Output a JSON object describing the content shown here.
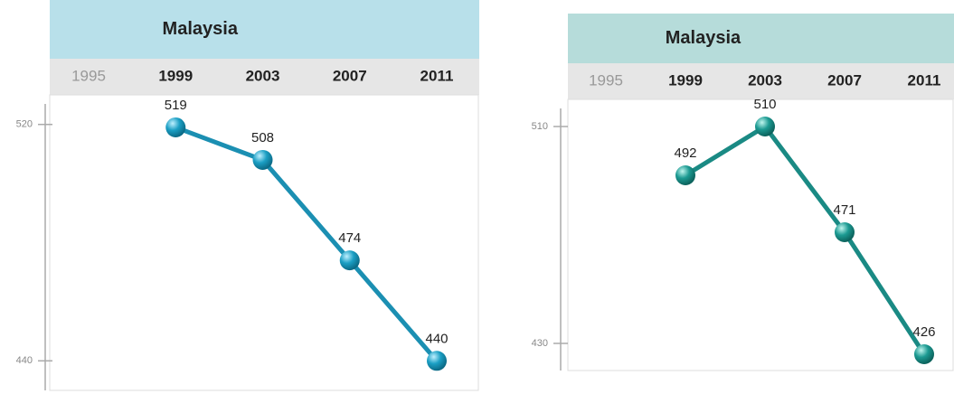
{
  "chart_data": [
    {
      "type": "line",
      "title": "Malaysia",
      "categories": [
        "1995",
        "1999",
        "2003",
        "2007",
        "2011"
      ],
      "values": [
        null,
        519,
        508,
        474,
        440
      ],
      "color": "#1b8fb2",
      "header_color": "#b8e0ea",
      "ylim": [
        430,
        530
      ],
      "yticks": [
        440,
        520
      ]
    },
    {
      "type": "line",
      "title": "Malaysia",
      "categories": [
        "1995",
        "1999",
        "2003",
        "2007",
        "2011"
      ],
      "values": [
        null,
        492,
        510,
        471,
        426
      ],
      "color": "#1a8a84",
      "header_color": "#b6dcda",
      "ylim": [
        420,
        520
      ],
      "yticks": [
        430,
        510
      ]
    }
  ]
}
